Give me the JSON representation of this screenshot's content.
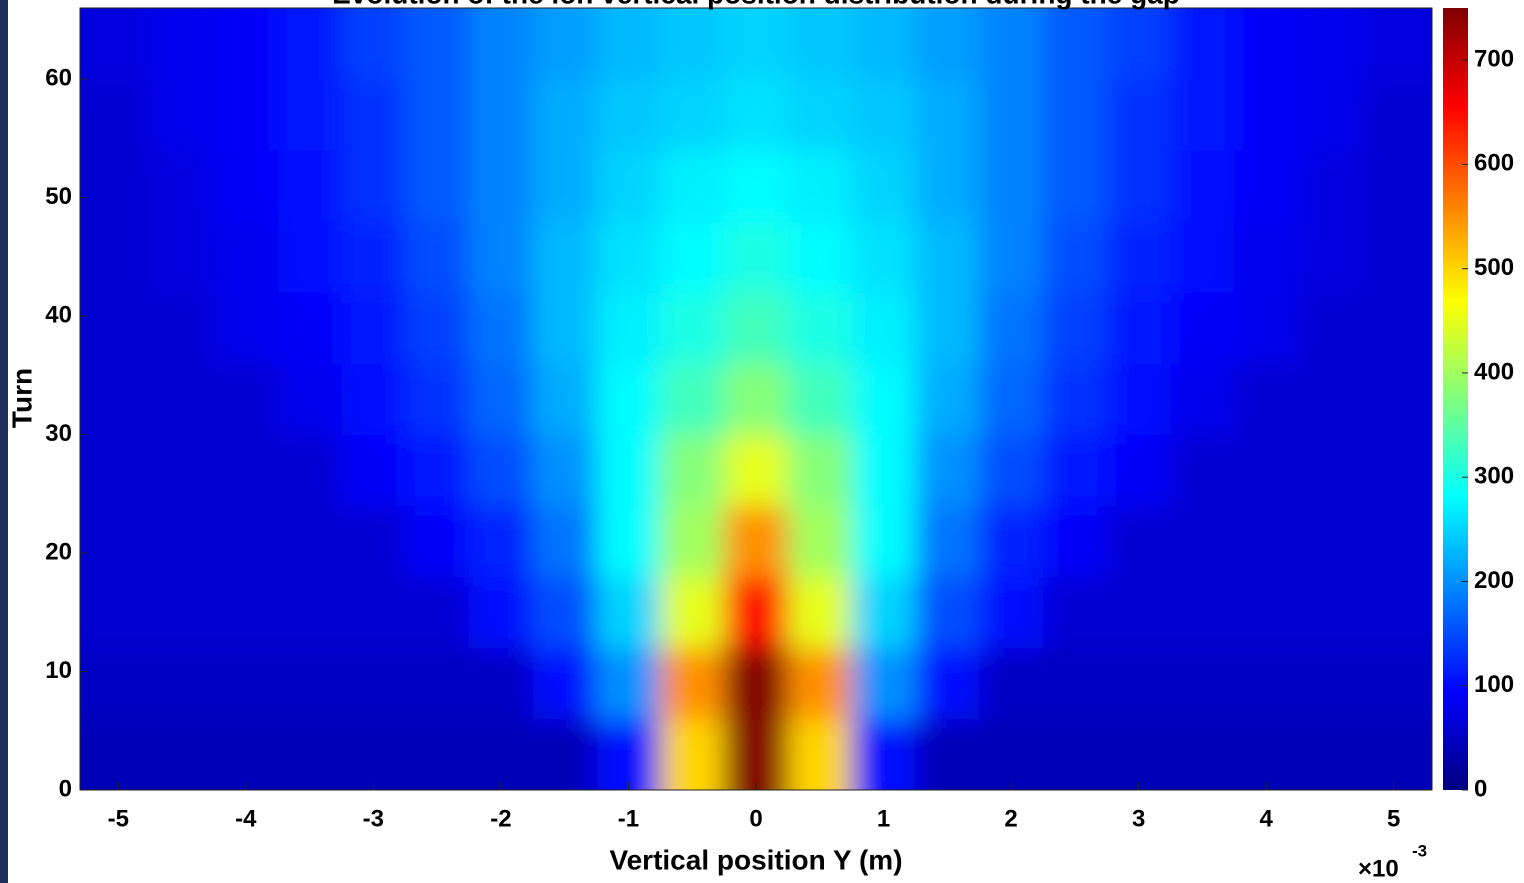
{
  "chart_data": {
    "type": "heatmap",
    "title": "Evolution of the ion vertical position distribution during the gap",
    "xlabel": "Vertical position Y (m)",
    "ylabel": "Turn",
    "x_multiplier": "×10",
    "x_multiplier_exp": "-3",
    "colormap": "jet",
    "x": [
      -5,
      -4.5,
      -4,
      -3.5,
      -3,
      -2.5,
      -2,
      -1.5,
      -1,
      -0.5,
      0,
      0.5,
      1,
      1.5,
      2,
      2.5,
      3,
      3.5,
      4,
      4.5,
      5
    ],
    "y": [
      3,
      9,
      15,
      21,
      27,
      33,
      39,
      45,
      51,
      57,
      63
    ],
    "z": [
      [
        40,
        40,
        40,
        40,
        40,
        40,
        40,
        40,
        100,
        500,
        750,
        500,
        100,
        40,
        40,
        40,
        40,
        40,
        40,
        40,
        40
      ],
      [
        50,
        50,
        50,
        50,
        50,
        50,
        50,
        100,
        200,
        550,
        750,
        550,
        200,
        100,
        50,
        50,
        50,
        50,
        50,
        50,
        50
      ],
      [
        60,
        60,
        60,
        60,
        60,
        60,
        100,
        150,
        250,
        450,
        650,
        450,
        250,
        150,
        100,
        60,
        60,
        60,
        60,
        60,
        60
      ],
      [
        60,
        60,
        60,
        60,
        60,
        90,
        120,
        180,
        280,
        400,
        550,
        400,
        280,
        180,
        120,
        90,
        60,
        60,
        60,
        60,
        60
      ],
      [
        60,
        60,
        60,
        60,
        90,
        110,
        150,
        200,
        280,
        380,
        450,
        380,
        280,
        200,
        150,
        110,
        90,
        60,
        60,
        60,
        60
      ],
      [
        60,
        60,
        60,
        80,
        100,
        130,
        170,
        220,
        280,
        330,
        380,
        330,
        280,
        220,
        170,
        130,
        100,
        80,
        60,
        60,
        60
      ],
      [
        60,
        60,
        80,
        90,
        110,
        140,
        180,
        230,
        270,
        300,
        330,
        300,
        270,
        230,
        180,
        140,
        110,
        90,
        80,
        60,
        60
      ],
      [
        60,
        70,
        80,
        100,
        120,
        150,
        190,
        230,
        260,
        280,
        300,
        280,
        260,
        230,
        190,
        150,
        120,
        100,
        80,
        70,
        60
      ],
      [
        60,
        70,
        90,
        100,
        130,
        160,
        190,
        220,
        250,
        270,
        280,
        270,
        250,
        220,
        190,
        160,
        130,
        100,
        90,
        70,
        60
      ],
      [
        60,
        80,
        90,
        110,
        130,
        160,
        190,
        220,
        240,
        250,
        260,
        250,
        240,
        220,
        190,
        160,
        130,
        110,
        90,
        80,
        60
      ],
      [
        70,
        80,
        90,
        110,
        140,
        160,
        190,
        210,
        230,
        240,
        250,
        240,
        230,
        210,
        190,
        160,
        140,
        110,
        90,
        80,
        70
      ]
    ],
    "xlim": [
      -5.3,
      5.3
    ],
    "ylim": [
      0,
      66
    ],
    "xticks": [
      -5,
      -4,
      -3,
      -2,
      -1,
      0,
      1,
      2,
      3,
      4,
      5
    ],
    "yticks": [
      0,
      10,
      20,
      30,
      40,
      50,
      60
    ],
    "clim": [
      0,
      750
    ],
    "cticks": [
      0,
      100,
      200,
      300,
      400,
      500,
      600,
      700
    ]
  }
}
